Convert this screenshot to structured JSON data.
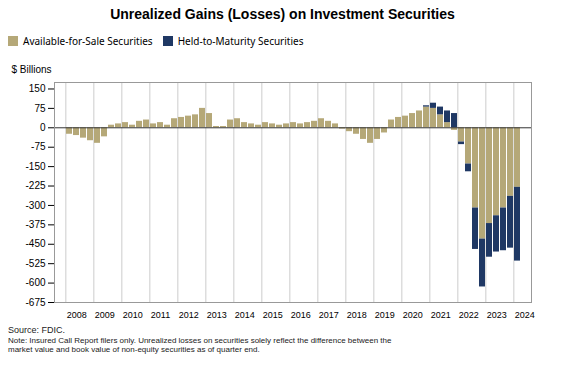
{
  "chart_data": {
    "type": "bar",
    "title": "Unrealized Gains (Losses) on Investment Securities",
    "y_label": "$ Billions",
    "annotations": [
      "Source: FDIC.",
      "Note: Insured Call Report filers only. Unrealized losses on securities solely reflect the difference between the\nmarket value and book value of non-equity securities as of quarter end."
    ],
    "categories": [
      "2008",
      null,
      null,
      null,
      "2009",
      null,
      null,
      null,
      "2010",
      null,
      null,
      null,
      "2011",
      null,
      null,
      null,
      "2012",
      null,
      null,
      null,
      "2013",
      null,
      null,
      null,
      "2014",
      null,
      null,
      null,
      "2015",
      null,
      null,
      null,
      "2016",
      null,
      null,
      null,
      "2017",
      null,
      null,
      null,
      "2018",
      null,
      null,
      null,
      "2019",
      null,
      null,
      null,
      "2020",
      null,
      null,
      null,
      "2021",
      null,
      null,
      null,
      "2022",
      null,
      null,
      null,
      "2023",
      null,
      null,
      null,
      "2024"
    ],
    "series": [
      {
        "name": "Available-for-Sale Securities",
        "color": "#b5a878",
        "values": [
          -25,
          -30,
          -40,
          -50,
          -60,
          -35,
          10,
          15,
          20,
          10,
          25,
          30,
          15,
          20,
          10,
          35,
          40,
          45,
          50,
          75,
          55,
          5,
          5,
          30,
          35,
          20,
          15,
          10,
          20,
          15,
          10,
          15,
          20,
          15,
          20,
          25,
          35,
          25,
          15,
          -5,
          -15,
          -25,
          -45,
          -60,
          -45,
          -20,
          30,
          40,
          45,
          55,
          65,
          80,
          75,
          50,
          20,
          -10,
          -55,
          -140,
          -310,
          -430,
          -370,
          -340,
          -310,
          -265,
          -230
        ]
      },
      {
        "name": "Held-to-Maturity Securities",
        "color": "#1f3864",
        "values": [
          0,
          0,
          0,
          0,
          0,
          0,
          0,
          0,
          0,
          0,
          0,
          0,
          0,
          0,
          0,
          0,
          0,
          0,
          0,
          0,
          0,
          0,
          0,
          0,
          0,
          0,
          0,
          0,
          0,
          0,
          0,
          0,
          0,
          0,
          0,
          0,
          0,
          0,
          0,
          0,
          0,
          0,
          0,
          0,
          0,
          0,
          0,
          0,
          0,
          0,
          0,
          5,
          20,
          30,
          45,
          55,
          -10,
          -30,
          -160,
          -185,
          -130,
          -140,
          -165,
          -200,
          -285
        ]
      }
    ],
    "stacked": true,
    "ylim": [
      -675,
      175
    ],
    "yticks": [
      150,
      75,
      0,
      -75,
      -150,
      -225,
      -300,
      -375,
      -450,
      -525,
      -600,
      -675
    ],
    "grid": true,
    "legend": "top"
  }
}
